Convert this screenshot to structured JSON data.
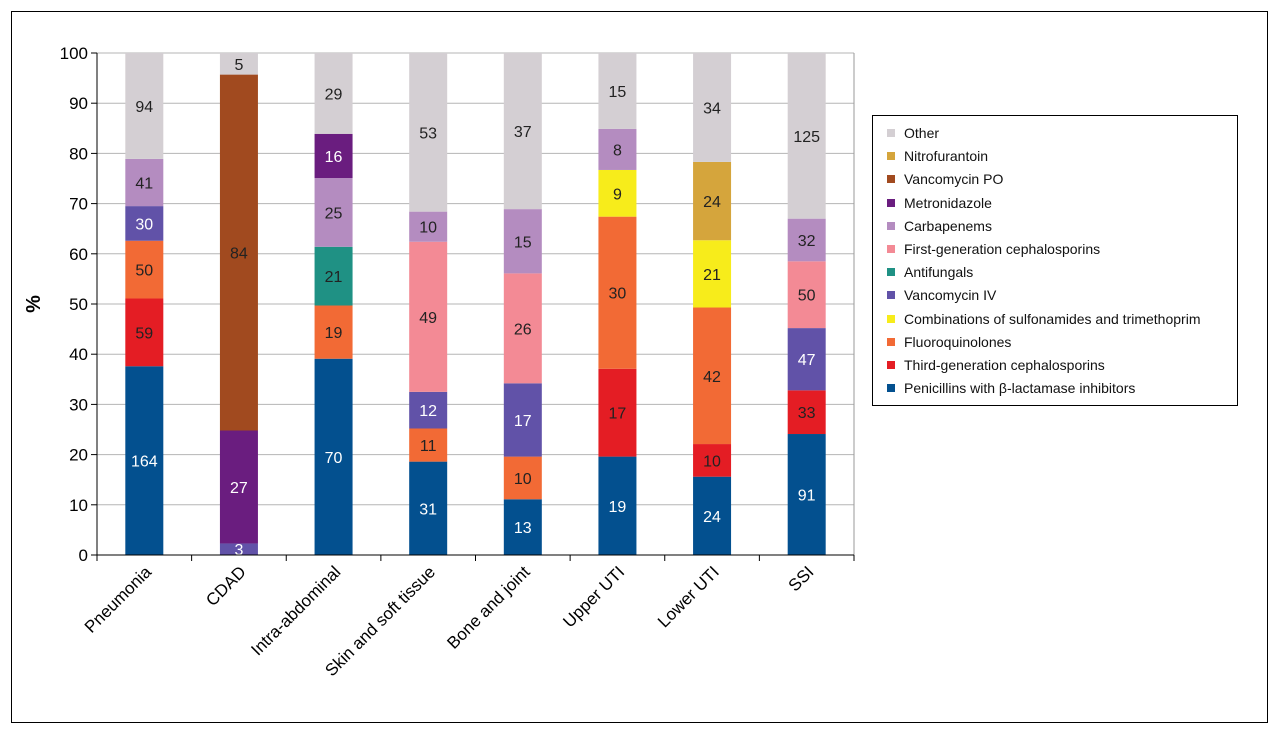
{
  "chart_data": {
    "type": "bar",
    "stacked": true,
    "title": "",
    "xlabel": "",
    "ylabel": "%",
    "ylim": [
      0,
      100
    ],
    "yticks": [
      0,
      10,
      20,
      30,
      40,
      50,
      60,
      70,
      80,
      90,
      100
    ],
    "grid": true,
    "legend_position": "right",
    "categories": [
      "Pneumonia",
      "CDAD",
      "Intra-abdominal",
      "Skin and soft tissue",
      "Bone and joint",
      "Upper UTI",
      "Lower UTI",
      "SSI"
    ],
    "series": [
      {
        "name": "Penicillins with β-lactamase inhibitors",
        "color": "#03508f",
        "percent": [
          37.6,
          0,
          39.1,
          18.6,
          11.1,
          19.6,
          15.6,
          24.1
        ],
        "labels": [
          164,
          null,
          70,
          31,
          13,
          19,
          24,
          91
        ],
        "label_color": "#ffffff"
      },
      {
        "name": "Third-generation cephalosporins",
        "color": "#e41d24",
        "percent": [
          13.5,
          0,
          0,
          0,
          0,
          17.5,
          6.5,
          8.7
        ],
        "labels": [
          59,
          null,
          null,
          null,
          null,
          17,
          10,
          33
        ],
        "label_color": "#222222"
      },
      {
        "name": "Fluoroquinolones",
        "color": "#f26a35",
        "percent": [
          11.5,
          0,
          10.6,
          6.6,
          8.5,
          30.3,
          27.2,
          0
        ],
        "labels": [
          50,
          null,
          19,
          11,
          10,
          30,
          42,
          null
        ],
        "label_color": "#222222"
      },
      {
        "name": "Combinations of sulfonamides and trimethoprim",
        "color": "#f7ec1b",
        "percent": [
          0,
          0,
          0,
          0,
          0,
          9.3,
          13.4,
          0
        ],
        "labels": [
          null,
          null,
          null,
          null,
          null,
          9,
          21,
          null
        ],
        "label_color": "#222222"
      },
      {
        "name": "Vancomycin IV",
        "color": "#6152a8",
        "percent": [
          6.9,
          2.3,
          0,
          7.3,
          14.6,
          0,
          0,
          12.4
        ],
        "labels": [
          30,
          3,
          null,
          12,
          17,
          null,
          null,
          47
        ],
        "label_color": "#ffffff"
      },
      {
        "name": "Antifungals",
        "color": "#1f9184",
        "percent": [
          0,
          0,
          11.7,
          0,
          0,
          0,
          0,
          0
        ],
        "labels": [
          null,
          null,
          21,
          null,
          null,
          null,
          null,
          null
        ],
        "label_color": "#222222"
      },
      {
        "name": "First-generation cephalosporins",
        "color": "#f38a95",
        "percent": [
          0,
          0,
          0,
          29.9,
          21.9,
          0,
          0,
          13.3
        ],
        "labels": [
          null,
          null,
          null,
          49,
          26,
          null,
          null,
          50
        ],
        "label_color": "#222222"
      },
      {
        "name": "Carbapenems",
        "color": "#b48cc0",
        "percent": [
          9.4,
          0,
          13.7,
          6.0,
          12.8,
          8.2,
          0,
          8.5
        ],
        "labels": [
          41,
          null,
          25,
          10,
          15,
          8,
          null,
          32
        ],
        "label_color": "#222222"
      },
      {
        "name": "Metronidazole",
        "color": "#6a1d7f",
        "percent": [
          0,
          22.5,
          8.8,
          0,
          0,
          0,
          0,
          0
        ],
        "labels": [
          null,
          27,
          16,
          null,
          null,
          null,
          null,
          null
        ],
        "label_color": "#ffffff"
      },
      {
        "name": "Vancomycin PO",
        "color": "#a14a1f",
        "percent": [
          0,
          70.9,
          0,
          0,
          0,
          0,
          0,
          0
        ],
        "labels": [
          null,
          84,
          null,
          null,
          null,
          null,
          null,
          null
        ],
        "label_color": "#222222"
      },
      {
        "name": "Nitrofurantoin",
        "color": "#d5a53c",
        "percent": [
          0,
          0,
          0,
          0,
          0,
          0,
          15.6,
          0
        ],
        "labels": [
          null,
          null,
          null,
          null,
          null,
          null,
          24,
          null
        ],
        "label_color": "#222222"
      },
      {
        "name": "Other",
        "color": "#d4cfd3",
        "percent": [
          21.1,
          4.3,
          16.1,
          31.6,
          31.1,
          15.1,
          21.7,
          33.0
        ],
        "labels": [
          94,
          5,
          29,
          53,
          37,
          15,
          34,
          125
        ],
        "label_color": "#222222"
      }
    ]
  },
  "legend": {
    "items": [
      {
        "label": "Other",
        "color": "#d4cfd3"
      },
      {
        "label": "Nitrofurantoin",
        "color": "#d5a53c"
      },
      {
        "label": "Vancomycin PO",
        "color": "#a14a1f"
      },
      {
        "label": "Metronidazole",
        "color": "#6a1d7f"
      },
      {
        "label": "Carbapenems",
        "color": "#b48cc0"
      },
      {
        "label": "First-generation cephalosporins",
        "color": "#f38a95"
      },
      {
        "label": "Antifungals",
        "color": "#1f9184"
      },
      {
        "label": "Vancomycin IV",
        "color": "#6152a8"
      },
      {
        "label": "Combinations of sulfonamides and trimethoprim",
        "color": "#f7ec1b"
      },
      {
        "label": "Fluoroquinolones",
        "color": "#f26a35"
      },
      {
        "label": "Third-generation cephalosporins",
        "color": "#e41d24"
      },
      {
        "label": "Penicillins with β-lactamase inhibitors",
        "color": "#03508f"
      }
    ]
  }
}
